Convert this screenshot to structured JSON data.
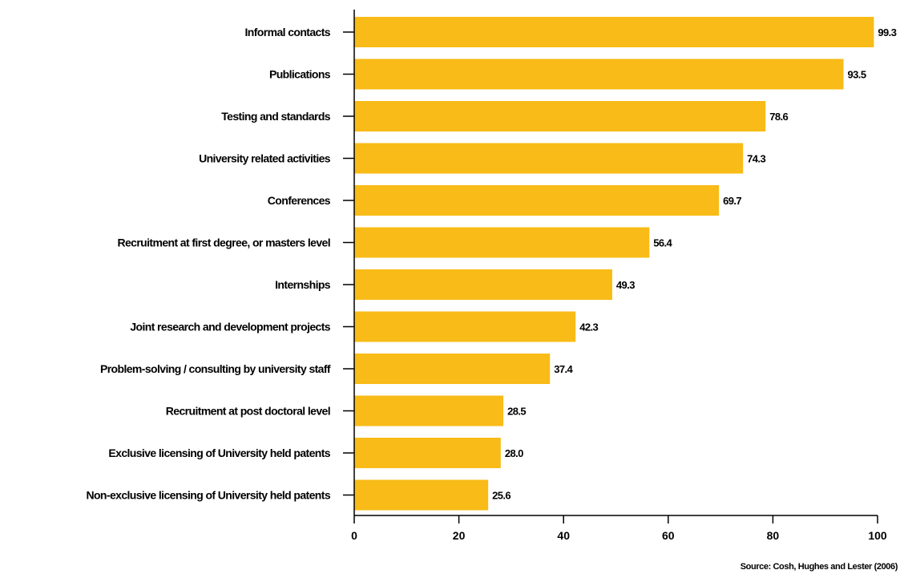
{
  "chart_data": {
    "type": "bar",
    "orientation": "horizontal",
    "categories": [
      "Informal contacts",
      "Publications",
      "Testing and standards",
      "University related activities",
      "Conferences",
      "Recruitment  at first degree, or masters level",
      "Internships",
      "Joint research and development projects",
      "Problem-solving / consulting by university staff",
      "Recruitment at post doctoral level",
      "Exclusive licensing of University held patents",
      "Non-exclusive licensing of University held patents"
    ],
    "values": [
      99.3,
      93.5,
      78.6,
      74.3,
      69.7,
      56.4,
      49.3,
      42.3,
      37.4,
      28.5,
      28.0,
      25.6
    ],
    "value_labels": [
      "99.3",
      "93.5",
      "78.6",
      "74.3",
      "69.7",
      "56.4",
      "49.3",
      "42.3",
      "37.4",
      "28.5",
      "28.0",
      "25.6"
    ],
    "xticks": [
      0,
      20,
      40,
      60,
      80,
      100
    ],
    "xlim": [
      0,
      100
    ],
    "bar_color": "#F8BB17",
    "grid": false,
    "title": "",
    "xlabel": "",
    "ylabel": ""
  },
  "source": "Source: Cosh, Hughes and Lester (2006)"
}
